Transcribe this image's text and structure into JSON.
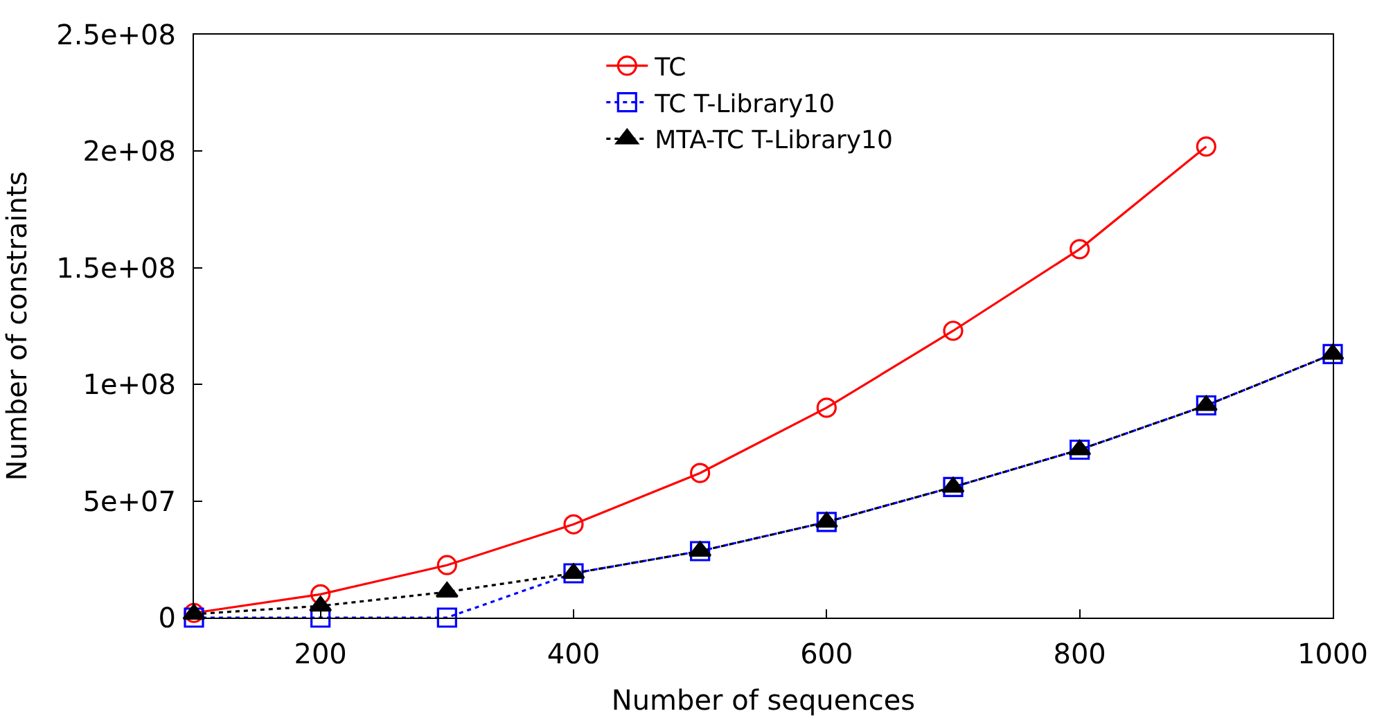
{
  "chart_data": {
    "type": "line",
    "xlabel": "Number of sequences",
    "ylabel": "Number of constraints",
    "x": [
      100,
      200,
      300,
      400,
      500,
      600,
      700,
      800,
      900,
      1000
    ],
    "series": [
      {
        "name": "TC",
        "color": "#ff0000",
        "marker": "circle",
        "line_style": "solid",
        "values": [
          2000000,
          10000000,
          22500000,
          40000000,
          62000000,
          90000000,
          123000000,
          158000000,
          202000000,
          null
        ]
      },
      {
        "name": "TC T-Library10",
        "color": "#0000ff",
        "marker": "square",
        "line_style": "dotted",
        "values": [
          0,
          0,
          0,
          19000000,
          28500000,
          41000000,
          56000000,
          72000000,
          91000000,
          113000000
        ]
      },
      {
        "name": "MTA-TC T-Library10",
        "color": "#000000",
        "marker": "triangle",
        "line_style": "dotted",
        "values": [
          1500000,
          5000000,
          11000000,
          19000000,
          28500000,
          41000000,
          56000000,
          72000000,
          91000000,
          113000000
        ]
      }
    ],
    "xlim": [
      100,
      1000
    ],
    "xticks": [
      200,
      400,
      600,
      800,
      1000
    ],
    "ylim": [
      0,
      250000000
    ],
    "yticks": [
      {
        "value": 0,
        "label": "0"
      },
      {
        "value": 50000000,
        "label": "5e+07"
      },
      {
        "value": 100000000,
        "label": "1e+08"
      },
      {
        "value": 150000000,
        "label": "1.5e+08"
      },
      {
        "value": 200000000,
        "label": "2e+08"
      },
      {
        "value": 250000000,
        "label": "2.5e+08"
      }
    ],
    "legend": "top right"
  }
}
